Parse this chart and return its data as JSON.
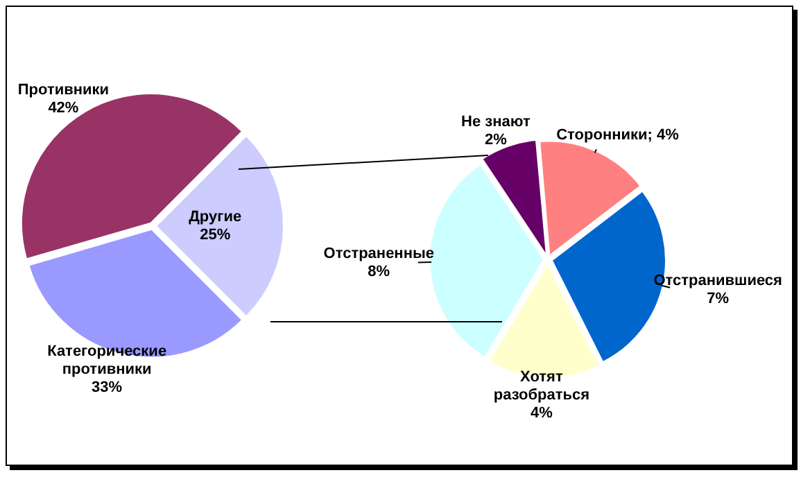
{
  "chart_data": [
    {
      "type": "pie",
      "categories": [
        "Противники",
        "Другие",
        "Категорические противники"
      ],
      "values": [
        42,
        25,
        33
      ],
      "colors": [
        "#993366",
        "#ccccff",
        "#9999ff"
      ],
      "value_labels": [
        "42%",
        "25%",
        "33%"
      ]
    },
    {
      "type": "pie",
      "categories": [
        "Сторонники",
        "Отстранившиеся",
        "Хотят разобраться",
        "Отстраненные",
        "Не знают"
      ],
      "values": [
        4,
        7,
        4,
        8,
        2
      ],
      "colors": [
        "#ff8080",
        "#0066cc",
        "#ffffcc",
        "#ccffff",
        "#660066"
      ],
      "value_labels": [
        "; 4%",
        "7%",
        "4%",
        "8%",
        "2%"
      ]
    }
  ]
}
